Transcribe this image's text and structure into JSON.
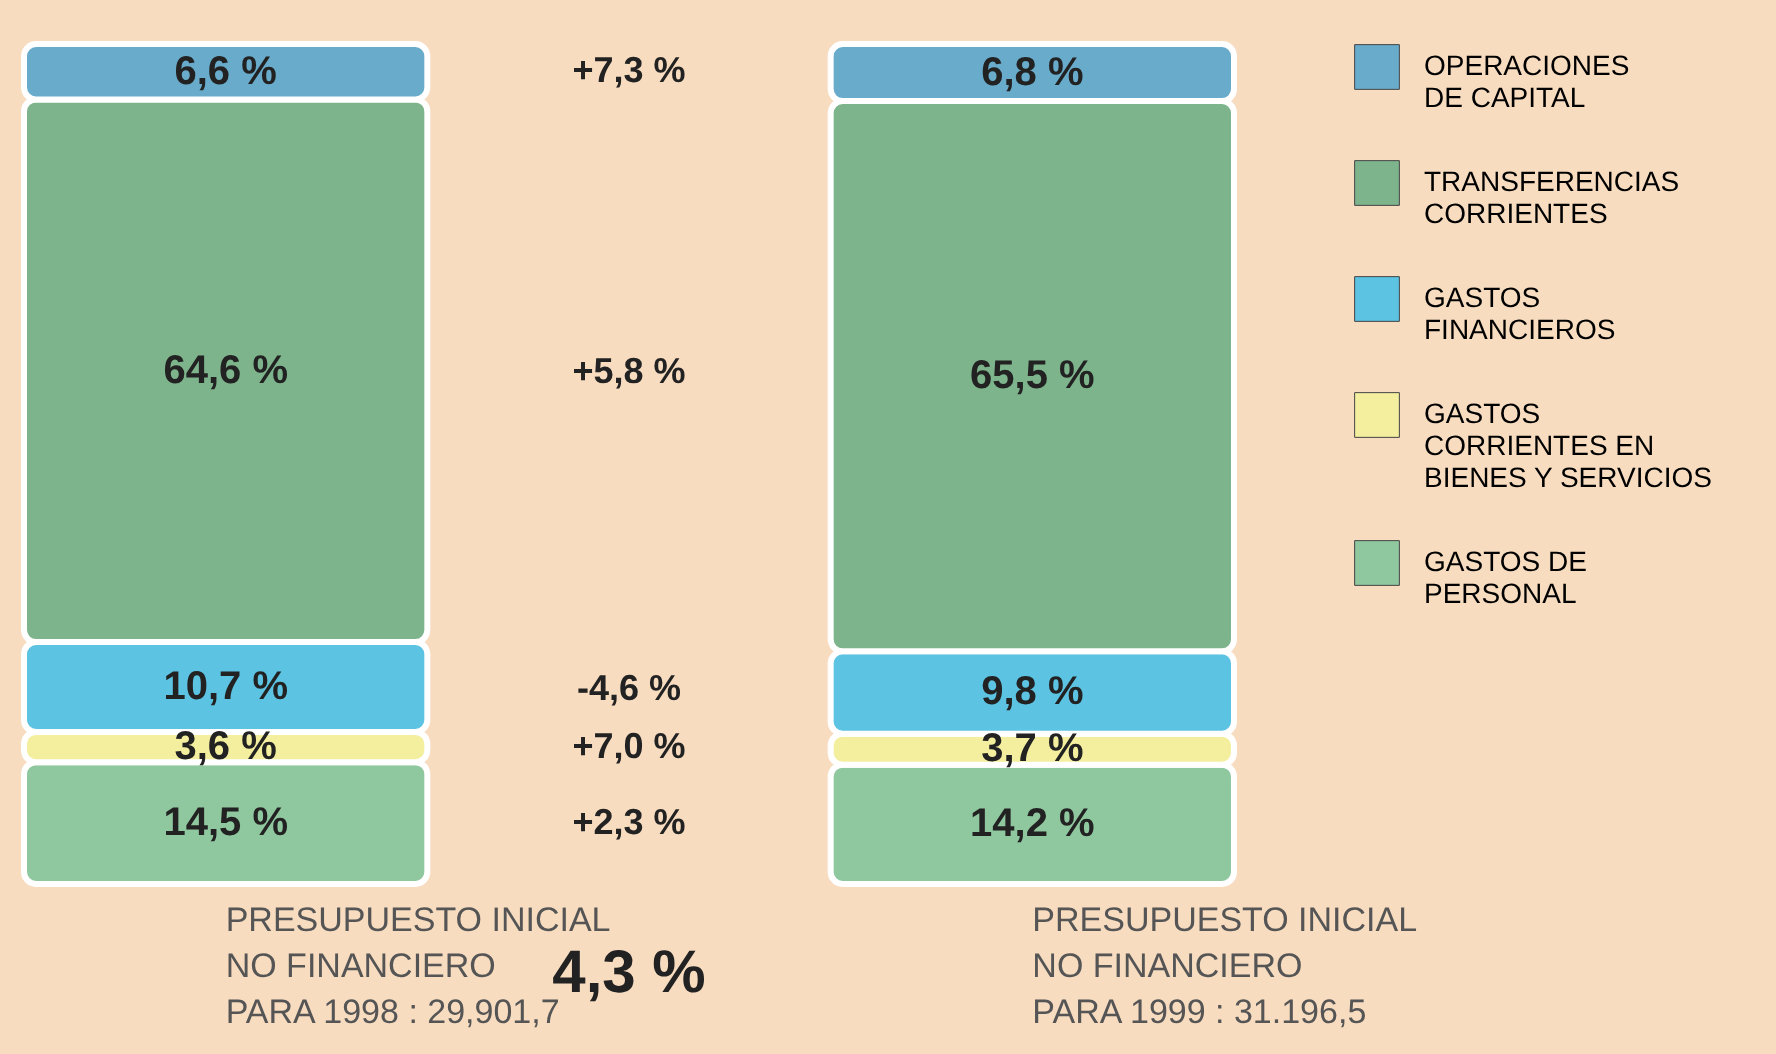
{
  "chart_data": {
    "type": "bar",
    "stacked": true,
    "data_labels": false,
    "legend": "right",
    "categories": [
      "PRESUPUESTO INICIAL\nNO FINANCIERO\nPARA 1998 : 29,901,7",
      "PRESUPUESTO INICIAL\nNO FINANCIERO\nPARA 1999 : 31.196,5"
    ],
    "series": [
      {
        "name": "GASTOS DE\nPERSONAL",
        "color": "#8fc79f",
        "values": [
          14.5,
          14.2
        ],
        "value_labels": [
          "14,5 %",
          "14,2 %"
        ]
      },
      {
        "name": "GASTOS\nCORRIENTES EN\nBIENES Y SERVICIOS",
        "color": "#f4ee9f",
        "values": [
          3.6,
          3.7
        ],
        "value_labels": [
          "3,6 %",
          "3,7 %"
        ]
      },
      {
        "name": "GASTOS\nFINANCIEROS",
        "color": "#5cc3e3",
        "values": [
          10.7,
          9.8
        ],
        "value_labels": [
          "10,7 %",
          "9,8 %"
        ]
      },
      {
        "name": "TRANSFERENCIAS\nCORRIENTES",
        "color": "#7db48c",
        "values": [
          64.6,
          65.5
        ],
        "value_labels": [
          "64,6 %",
          "65,5 %"
        ]
      },
      {
        "name": "OPERACIONES\nDE CAPITAL",
        "color": "#68abcb",
        "values": [
          6.6,
          6.8
        ],
        "value_labels": [
          "6,6 %",
          "6,8 %"
        ]
      }
    ],
    "annotations": [
      "+7,3 %",
      "+5,8 %",
      "-4,6 %",
      "+7,0 %",
      "+2,3 %",
      "4,3 %"
    ]
  }
}
